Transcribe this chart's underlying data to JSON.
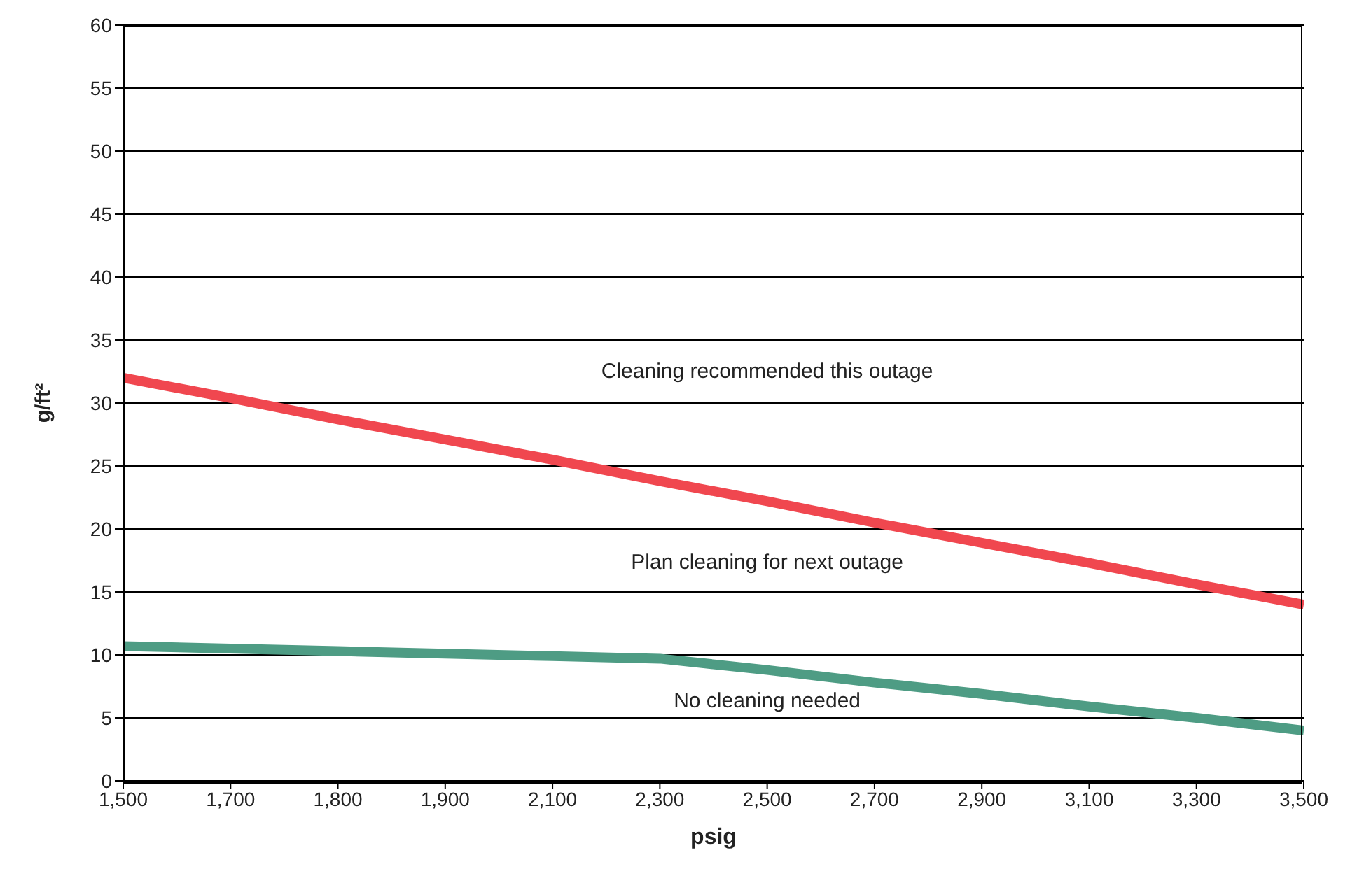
{
  "chart_data": {
    "type": "line",
    "xlabel": "psig",
    "ylabel": "g/ft²",
    "categories": [
      "1,500",
      "1,700",
      "1,800",
      "1,900",
      "2,100",
      "2,300",
      "2,500",
      "2,700",
      "2,900",
      "3,100",
      "3,300",
      "3,500"
    ],
    "series": [
      {
        "color": "#f0474f",
        "values": [
          32,
          30.4,
          28.7,
          27.1,
          25.5,
          23.8,
          22.2,
          20.5,
          18.9,
          17.3,
          15.6,
          14
        ]
      },
      {
        "color": "#4e9c84",
        "values": [
          10.7,
          10.5,
          10.3,
          10.1,
          9.9,
          9.7,
          8.8,
          7.8,
          6.9,
          5.9,
          5.0,
          4.0
        ]
      }
    ],
    "ylim": [
      0,
      60
    ],
    "yticks": [
      0,
      5,
      10,
      15,
      20,
      25,
      30,
      35,
      40,
      45,
      50,
      55,
      60
    ],
    "grid": "y",
    "marker": "none",
    "line_style": "solid",
    "annotations": [
      "Cleaning recommended this outage",
      "Plan cleaning for next outage",
      "No cleaning needed"
    ]
  }
}
